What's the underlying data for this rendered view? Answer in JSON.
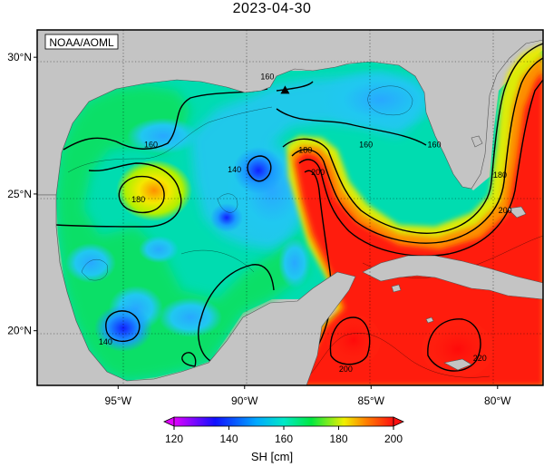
{
  "title": "2023-04-30",
  "attribution": "NOAA/AOML",
  "axes": {
    "x_ticks": [
      {
        "value": -95,
        "label": "95°W"
      },
      {
        "value": -90,
        "label": "90°W"
      },
      {
        "value": -85,
        "label": "85°W"
      },
      {
        "value": -80,
        "label": "80°W"
      }
    ],
    "y_ticks": [
      {
        "value": 30,
        "label": "30°N"
      },
      {
        "value": 25,
        "label": "25°N"
      },
      {
        "value": 20,
        "label": "20°N"
      }
    ],
    "lon_range": [
      -98.2,
      -78.2
    ],
    "lat_range": [
      18,
      31
    ]
  },
  "contour_labels": [
    {
      "text": "160",
      "lon": -93.7,
      "lat": 26.8
    },
    {
      "text": "140",
      "lon": -90.4,
      "lat": 25.9
    },
    {
      "text": "180",
      "lon": -94.2,
      "lat": 24.8
    },
    {
      "text": "140",
      "lon": -95.5,
      "lat": 19.6
    },
    {
      "text": "160",
      "lon": -89.1,
      "lat": 29.3
    },
    {
      "text": "180",
      "lon": -87.6,
      "lat": 26.6
    },
    {
      "text": "200",
      "lon": -87.1,
      "lat": 25.8
    },
    {
      "text": "160",
      "lon": -85.2,
      "lat": 26.8
    },
    {
      "text": "160",
      "lon": -82.5,
      "lat": 26.8
    },
    {
      "text": "180",
      "lon": -79.9,
      "lat": 25.7
    },
    {
      "text": "200",
      "lon": -79.7,
      "lat": 24.4
    },
    {
      "text": "200",
      "lon": -86.0,
      "lat": 18.6
    },
    {
      "text": "220",
      "lon": -80.7,
      "lat": 19.0
    }
  ],
  "marker": {
    "symbol": "triangle",
    "lon": -88.4,
    "lat": 28.8
  },
  "colorbar": {
    "label": "SH [cm]",
    "ticks": [
      "120",
      "140",
      "160",
      "180",
      "200"
    ],
    "min": 120,
    "max": 200,
    "stops": [
      {
        "value": 120,
        "color": "#e000ff"
      },
      {
        "value": 135,
        "color": "#1010ff"
      },
      {
        "value": 150,
        "color": "#00a8ff"
      },
      {
        "value": 160,
        "color": "#00e8c8"
      },
      {
        "value": 170,
        "color": "#00e840"
      },
      {
        "value": 182,
        "color": "#f0f000"
      },
      {
        "value": 190,
        "color": "#ff8000"
      },
      {
        "value": 200,
        "color": "#ff1010"
      }
    ]
  },
  "colors": {
    "land": "#c4c4c4",
    "contour": "#000000",
    "frame": "#000000"
  }
}
